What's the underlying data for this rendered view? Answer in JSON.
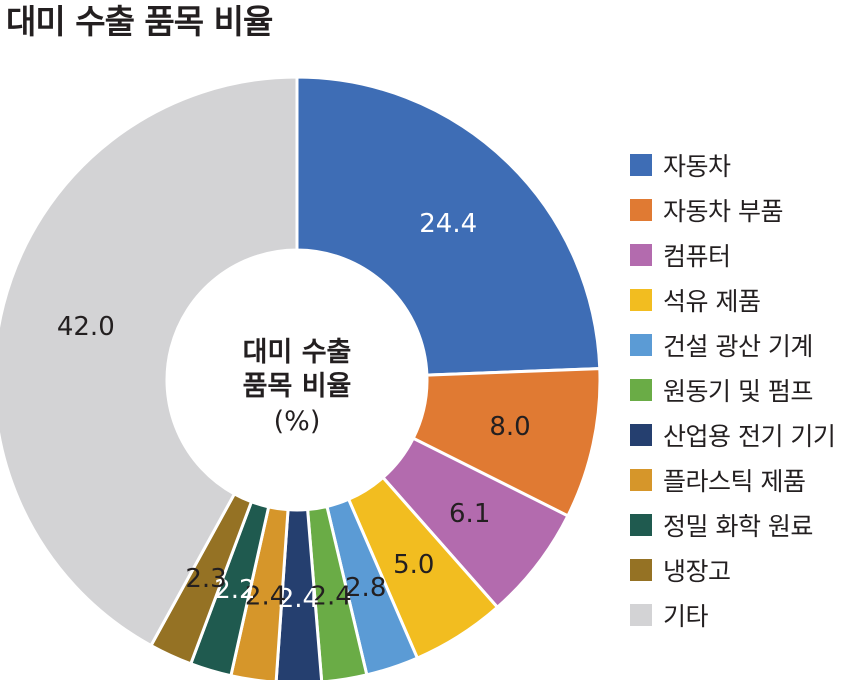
{
  "title": "대미 수출 품목 비율",
  "center_label": {
    "line1": "대미 수출",
    "line2": "품목 비율",
    "unit": "(%)"
  },
  "chart_data": {
    "type": "pie",
    "variant": "donut",
    "title": "대미 수출 품목 비율",
    "unit": "%",
    "legend_position": "right",
    "categories": [
      "자동차",
      "자동차 부품",
      "컴퓨터",
      "석유 제품",
      "건설 광산 기계",
      "원동기 및 펌프",
      "산업용 전기 기기",
      "플라스틱 제품",
      "정밀 화학 원료",
      "냉장고",
      "기타"
    ],
    "values": [
      24.4,
      8.0,
      6.1,
      5.0,
      2.8,
      2.4,
      2.4,
      2.4,
      2.2,
      2.3,
      42.0
    ],
    "labels": [
      "24.4",
      "8.0",
      "6.1",
      "5.0",
      "2.8",
      "2.4",
      "2.4",
      "2.4",
      "2.2",
      "2.3",
      "42.0"
    ],
    "colors": [
      "#3e6db5",
      "#e07a33",
      "#b36bae",
      "#f2bd20",
      "#5b9bd5",
      "#6aac46",
      "#253f6f",
      "#d6962a",
      "#1f5a4f",
      "#957224",
      "#d3d3d5"
    ],
    "label_colors": [
      "#ffffff",
      "#231f20",
      "#231f20",
      "#231f20",
      "#231f20",
      "#231f20",
      "#ffffff",
      "#231f20",
      "#ffffff",
      "#231f20",
      "#231f20"
    ]
  }
}
